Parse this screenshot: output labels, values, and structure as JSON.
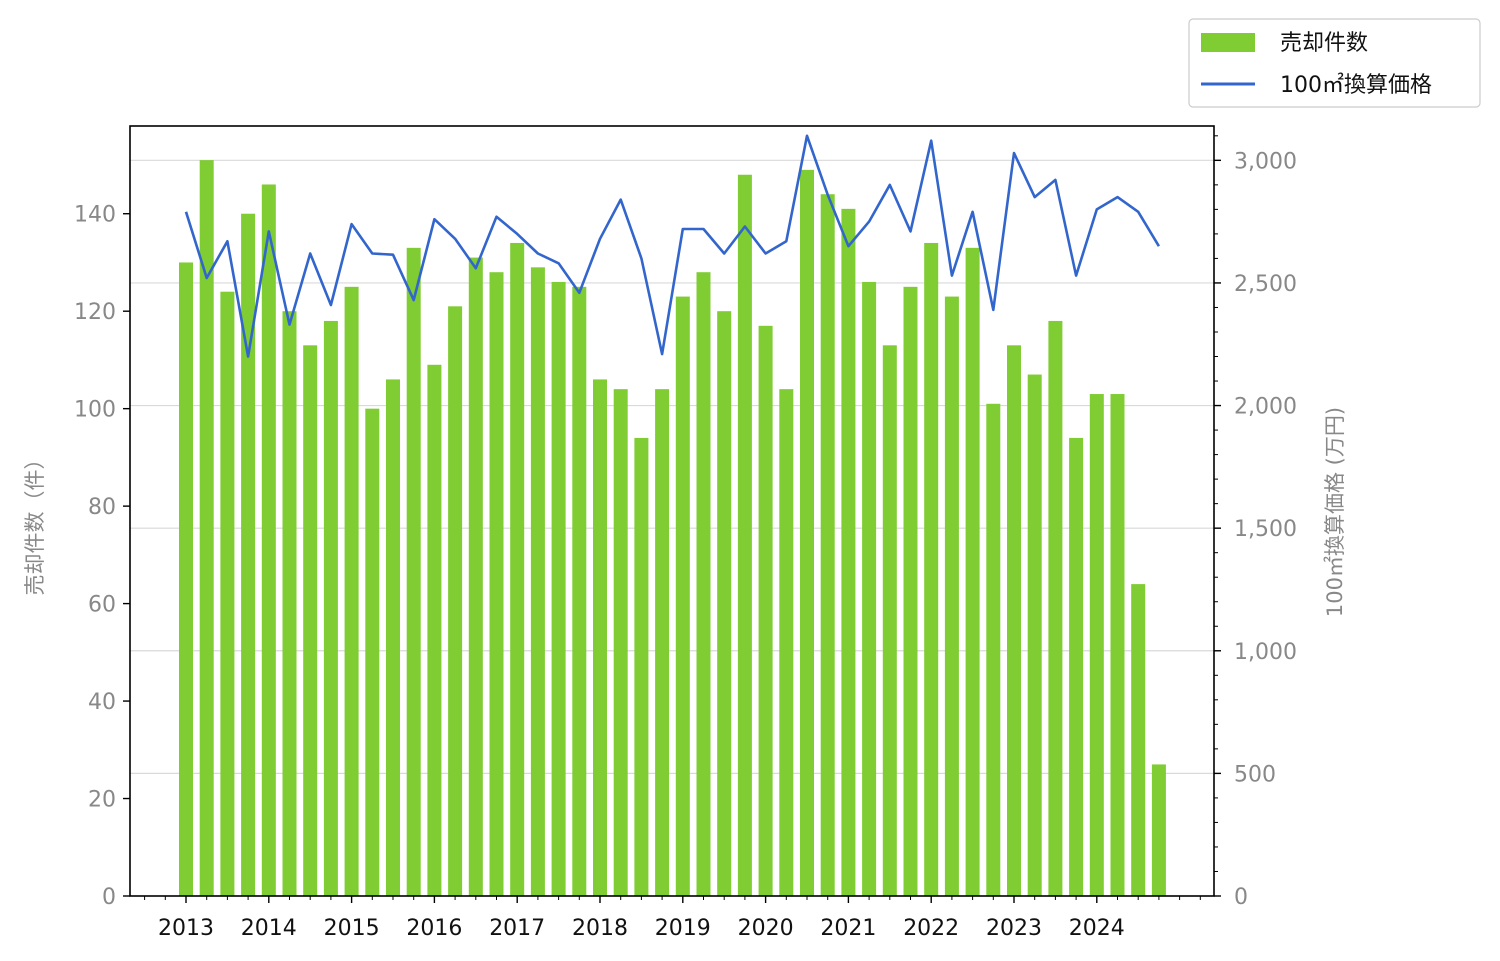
{
  "chart_data": {
    "type": "bar",
    "title": "",
    "xlabel": "",
    "ylabel": "売却件数（件）",
    "y2label": "100㎡換算価格 (万円)",
    "ylim": [
      0,
      158
    ],
    "y2lim": [
      0,
      3140
    ],
    "y_ticks": [
      "0",
      "20",
      "40",
      "60",
      "80",
      "100",
      "120",
      "140"
    ],
    "y2_ticks": [
      "0",
      "500",
      "1,000",
      "1,500",
      "2,000",
      "2,500",
      "3,000"
    ],
    "x_ticks": [
      "2013",
      "2014",
      "2015",
      "2016",
      "2017",
      "2018",
      "2019",
      "2020",
      "2021",
      "2022",
      "2023",
      "2024"
    ],
    "grid": "horizontal on secondary axis",
    "legend_position": "top-right outside",
    "colors": {
      "bar": "#7fcc33",
      "line": "#3366cc",
      "grid": "#d9d9d9",
      "tick_left": "#888888"
    },
    "categories": [
      "2013Q1",
      "2013Q2",
      "2013Q3",
      "2013Q4",
      "2014Q1",
      "2014Q2",
      "2014Q3",
      "2014Q4",
      "2015Q1",
      "2015Q2",
      "2015Q3",
      "2015Q4",
      "2016Q1",
      "2016Q2",
      "2016Q3",
      "2016Q4",
      "2017Q1",
      "2017Q2",
      "2017Q3",
      "2017Q4",
      "2018Q1",
      "2018Q2",
      "2018Q3",
      "2018Q4",
      "2019Q1",
      "2019Q2",
      "2019Q3",
      "2019Q4",
      "2020Q1",
      "2020Q2",
      "2020Q3",
      "2020Q4",
      "2021Q1",
      "2021Q2",
      "2021Q3",
      "2021Q4",
      "2022Q1",
      "2022Q2",
      "2022Q3",
      "2022Q4",
      "2023Q1",
      "2023Q2",
      "2023Q3",
      "2023Q4",
      "2024Q1",
      "2024Q2",
      "2024Q3",
      "2024Q4"
    ],
    "series": [
      {
        "name": "売却件数",
        "type": "bar",
        "axis": "left",
        "values": [
          130,
          151,
          124,
          140,
          146,
          120,
          113,
          118,
          125,
          100,
          106,
          133,
          109,
          121,
          131,
          128,
          134,
          129,
          126,
          125,
          106,
          104,
          94,
          104,
          123,
          128,
          120,
          148,
          117,
          104,
          149,
          144,
          141,
          126,
          113,
          125,
          134,
          123,
          133,
          101,
          113,
          107,
          118,
          94,
          103,
          103,
          64,
          27
        ]
      },
      {
        "name": "100㎡換算価格",
        "type": "line",
        "axis": "right",
        "values": [
          2790,
          2520,
          2670,
          2200,
          2710,
          2330,
          2620,
          2410,
          2740,
          2620,
          2615,
          2430,
          2760,
          2680,
          2560,
          2770,
          2700,
          2620,
          2580,
          2460,
          2680,
          2840,
          2600,
          2210,
          2720,
          2720,
          2620,
          2730,
          2620,
          2670,
          3100,
          2860,
          2650,
          2750,
          2900,
          2710,
          3080,
          2530,
          2790,
          2390,
          3030,
          2850,
          2920,
          2530,
          2800,
          2850,
          2790,
          2650
        ]
      }
    ]
  },
  "legend": {
    "items": [
      "売却件数",
      "100㎡換算価格"
    ]
  }
}
